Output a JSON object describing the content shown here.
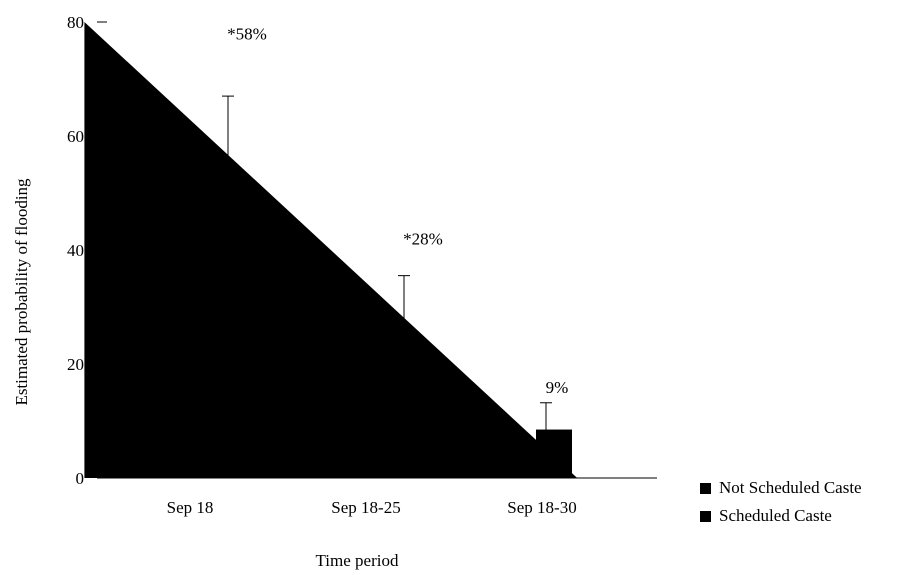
{
  "chart_data": {
    "type": "area",
    "categories": [
      "Sep 18",
      "Sep 18-25",
      "Sep 18-30"
    ],
    "ylabel": "Estimated probability of flooding",
    "xlabel": "Time period",
    "ylim": [
      0,
      80
    ],
    "yticks": [
      0,
      20,
      40,
      60,
      80
    ],
    "area_polygon": [
      [
        -0.6,
        80
      ],
      [
        2.2,
        0
      ]
    ],
    "error_bars": [
      {
        "category": "Sep 18",
        "top": 67
      },
      {
        "category": "Sep 18-25",
        "top": 35.5
      },
      {
        "category": "Sep 18-30",
        "top": 13.2
      }
    ],
    "annotations": [
      {
        "category": "Sep 18",
        "text": "*58%",
        "y": 78
      },
      {
        "category": "Sep 18-25",
        "text": "*28%",
        "y": 42
      },
      {
        "category": "Sep 18-30",
        "text": "9%",
        "y": 16
      }
    ],
    "legend": [
      "Not Scheduled Caste",
      "Scheduled Caste"
    ],
    "colors": {
      "fill": "#000000"
    }
  }
}
